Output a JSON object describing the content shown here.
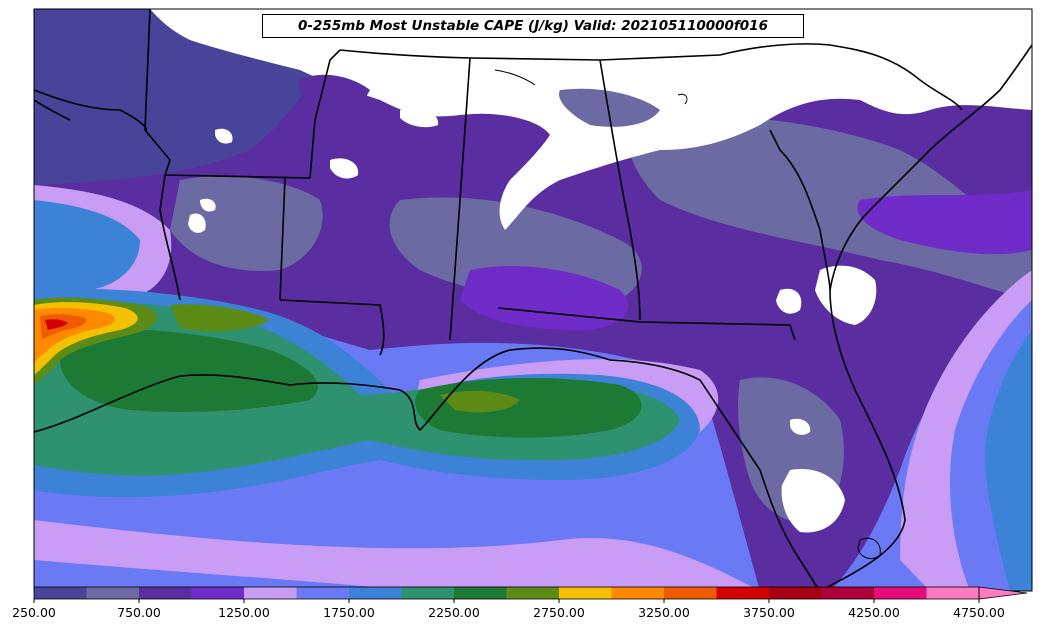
{
  "title": "0-255mb Most Unstable CAPE (J/kg) Valid: 202105110000f016",
  "colorbar": {
    "colors": [
      "#47449a",
      "#6b6aa3",
      "#5a2ea0",
      "#6f2cc9",
      "#c99cf5",
      "#6a7af5",
      "#3c82d6",
      "#2e9170",
      "#1c7a34",
      "#5d8c16",
      "#f4c000",
      "#ff8a00",
      "#f05a00",
      "#d40000",
      "#a80012",
      "#b0003a",
      "#e60c7a",
      "#ff7ac0"
    ],
    "ticks": [
      "250.00",
      "750.00",
      "1250.00",
      "1750.00",
      "2250.00",
      "2750.00",
      "3250.00",
      "3750.00",
      "4250.00",
      "4750.00"
    ],
    "extend": "max"
  }
}
